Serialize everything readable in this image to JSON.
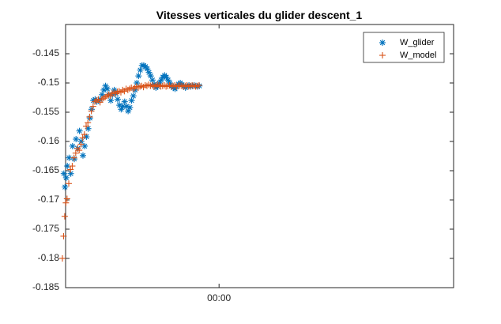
{
  "chart_data": {
    "type": "scatter",
    "title": "Vitesses verticales du glider descent_1",
    "xlabel": "",
    "ylabel": "",
    "ylim": [
      -0.185,
      -0.14
    ],
    "yticks": [
      -0.145,
      -0.15,
      -0.155,
      -0.16,
      -0.165,
      -0.17,
      -0.175,
      -0.18,
      -0.185
    ],
    "ytick_labels": [
      "-0.145",
      "-0.15",
      "-0.155",
      "-0.16",
      "-0.165",
      "-0.17",
      "-0.175",
      "-0.18",
      "-0.185"
    ],
    "xlim": [
      -0.53,
      0.81
    ],
    "xtick_labels": [
      "00:00"
    ],
    "xticks": [
      0
    ],
    "grid": false,
    "legend": "top-right",
    "series": [
      {
        "name": "W_glider",
        "marker": "*",
        "color": "#0072BD",
        "x": [
          -0.536,
          -0.532,
          -0.528,
          -0.524,
          -0.518,
          -0.512,
          -0.506,
          -0.5,
          -0.494,
          -0.488,
          -0.482,
          -0.476,
          -0.47,
          -0.464,
          -0.458,
          -0.452,
          -0.446,
          -0.44,
          -0.434,
          -0.428,
          -0.422,
          -0.416,
          -0.41,
          -0.404,
          -0.398,
          -0.392,
          -0.386,
          -0.38,
          -0.374,
          -0.368,
          -0.362,
          -0.356,
          -0.35,
          -0.344,
          -0.338,
          -0.332,
          -0.326,
          -0.32,
          -0.314,
          -0.308,
          -0.302,
          -0.296,
          -0.29,
          -0.284,
          -0.278,
          -0.272,
          -0.266,
          -0.26,
          -0.254,
          -0.248,
          -0.242,
          -0.236,
          -0.23,
          -0.224,
          -0.218,
          -0.212,
          -0.206,
          -0.2,
          -0.194,
          -0.188,
          -0.182,
          -0.176,
          -0.17,
          -0.164,
          -0.158,
          -0.152,
          -0.146,
          -0.14,
          -0.134,
          -0.128,
          -0.122,
          -0.116,
          -0.11,
          -0.104,
          -0.098,
          -0.092,
          -0.086,
          -0.08,
          -0.074,
          -0.068
        ],
        "y": [
          -0.1655,
          -0.1678,
          -0.1662,
          -0.1642,
          -0.1628,
          -0.1655,
          -0.1608,
          -0.163,
          -0.1596,
          -0.1612,
          -0.1582,
          -0.16,
          -0.1624,
          -0.1608,
          -0.1592,
          -0.1578,
          -0.156,
          -0.1545,
          -0.153,
          -0.1528,
          -0.1532,
          -0.153,
          -0.1528,
          -0.152,
          -0.1512,
          -0.1505,
          -0.151,
          -0.152,
          -0.153,
          -0.152,
          -0.1512,
          -0.1518,
          -0.1528,
          -0.1538,
          -0.1545,
          -0.154,
          -0.1532,
          -0.154,
          -0.1548,
          -0.1542,
          -0.153,
          -0.1522,
          -0.1512,
          -0.15,
          -0.1488,
          -0.1478,
          -0.147,
          -0.147,
          -0.1472,
          -0.1476,
          -0.1482,
          -0.1488,
          -0.1495,
          -0.1502,
          -0.1508,
          -0.1506,
          -0.15,
          -0.1495,
          -0.149,
          -0.1487,
          -0.149,
          -0.1495,
          -0.15,
          -0.1505,
          -0.1508,
          -0.151,
          -0.1506,
          -0.1502,
          -0.15,
          -0.1503,
          -0.1506,
          -0.1508,
          -0.1505,
          -0.1504,
          -0.1506,
          -0.1505,
          -0.1504,
          -0.1505,
          -0.1506,
          -0.1505
        ]
      },
      {
        "name": "W_model",
        "marker": "+",
        "color": "#D95319",
        "x": [
          -0.541,
          -0.537,
          -0.533,
          -0.529,
          -0.525,
          -0.519,
          -0.513,
          -0.507,
          -0.501,
          -0.495,
          -0.489,
          -0.483,
          -0.477,
          -0.471,
          -0.465,
          -0.459,
          -0.453,
          -0.447,
          -0.441,
          -0.435,
          -0.429,
          -0.423,
          -0.417,
          -0.411,
          -0.405,
          -0.399,
          -0.393,
          -0.387,
          -0.381,
          -0.375,
          -0.369,
          -0.363,
          -0.357,
          -0.351,
          -0.345,
          -0.339,
          -0.333,
          -0.327,
          -0.321,
          -0.315,
          -0.309,
          -0.303,
          -0.297,
          -0.291,
          -0.285,
          -0.279,
          -0.273,
          -0.267,
          -0.261,
          -0.255,
          -0.249,
          -0.243,
          -0.237,
          -0.231,
          -0.225,
          -0.219,
          -0.213,
          -0.207,
          -0.201,
          -0.195,
          -0.189,
          -0.183,
          -0.177,
          -0.171,
          -0.165,
          -0.159,
          -0.153,
          -0.147,
          -0.141,
          -0.135,
          -0.129,
          -0.123,
          -0.117,
          -0.111,
          -0.105,
          -0.099,
          -0.093,
          -0.087,
          -0.081,
          -0.075,
          -0.069
        ],
        "y": [
          -0.18,
          -0.1762,
          -0.1728,
          -0.1705,
          -0.1698,
          -0.1672,
          -0.1648,
          -0.1642,
          -0.1628,
          -0.162,
          -0.1612,
          -0.1615,
          -0.1605,
          -0.1594,
          -0.1588,
          -0.1574,
          -0.1568,
          -0.1558,
          -0.1548,
          -0.154,
          -0.1532,
          -0.153,
          -0.1528,
          -0.1533,
          -0.1528,
          -0.1526,
          -0.1524,
          -0.1522,
          -0.152,
          -0.1522,
          -0.1518,
          -0.1516,
          -0.1518,
          -0.1515,
          -0.1514,
          -0.1516,
          -0.1512,
          -0.1514,
          -0.151,
          -0.1512,
          -0.151,
          -0.1508,
          -0.151,
          -0.1508,
          -0.1506,
          -0.1508,
          -0.1506,
          -0.1505,
          -0.1507,
          -0.1504,
          -0.1505,
          -0.1503,
          -0.1505,
          -0.1504,
          -0.1506,
          -0.1505,
          -0.1503,
          -0.1504,
          -0.1506,
          -0.1505,
          -0.1504,
          -0.1506,
          -0.1505,
          -0.1504,
          -0.1506,
          -0.1505,
          -0.1504,
          -0.1506,
          -0.1505,
          -0.1504,
          -0.1505,
          -0.1506,
          -0.1505,
          -0.1504,
          -0.1506,
          -0.1505,
          -0.1504,
          -0.1505,
          -0.1506,
          -0.1505,
          -0.1504
        ]
      }
    ]
  }
}
